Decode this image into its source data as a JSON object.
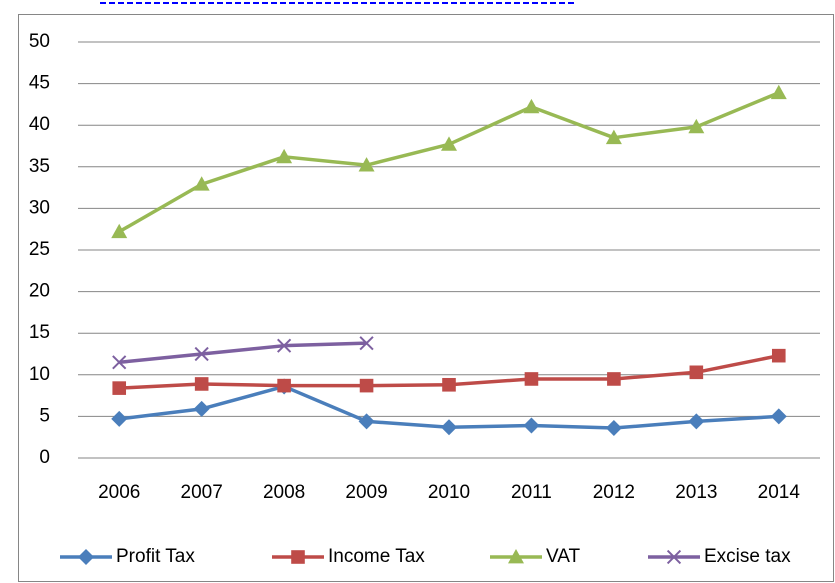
{
  "chart_data": {
    "type": "line",
    "categories": [
      "2006",
      "2007",
      "2008",
      "2009",
      "2010",
      "2011",
      "2012",
      "2013",
      "2014"
    ],
    "series": [
      {
        "name": "Profit Tax",
        "color": "#4a7ebb",
        "marker": "diamond",
        "values": [
          4.7,
          5.9,
          8.6,
          4.4,
          3.7,
          3.9,
          3.6,
          4.4,
          5.0
        ]
      },
      {
        "name": "Income Tax",
        "color": "#be4b48",
        "marker": "square",
        "values": [
          8.4,
          8.9,
          8.7,
          8.7,
          8.8,
          9.5,
          9.5,
          10.3,
          12.3
        ]
      },
      {
        "name": "VAT",
        "color": "#98b954",
        "marker": "triangle",
        "values": [
          27.2,
          32.9,
          36.2,
          35.2,
          37.7,
          42.2,
          38.5,
          39.8,
          43.9
        ]
      },
      {
        "name": "Excise tax",
        "color": "#7d60a0",
        "marker": "x",
        "values": [
          11.5,
          12.5,
          13.5,
          13.8,
          null,
          null,
          null,
          null,
          null
        ]
      }
    ],
    "ylim": [
      0,
      50
    ],
    "yticks": [
      0,
      5,
      10,
      15,
      20,
      25,
      30,
      35,
      40,
      45,
      50
    ],
    "grid": true,
    "legend": "bottom"
  }
}
